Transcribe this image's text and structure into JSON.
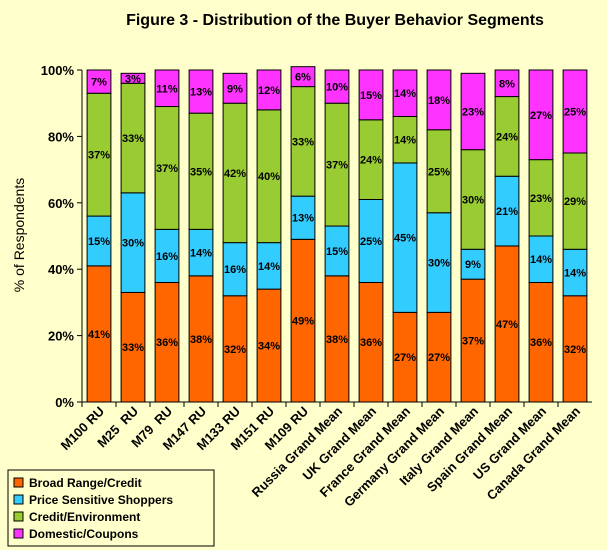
{
  "chart_data": {
    "type": "bar",
    "stacked": true,
    "title": "Figure 3 - Distribution of the Buyer Behavior Segments",
    "ylabel": "% of Respondents",
    "xlabel": "",
    "ylim": [
      0,
      100
    ],
    "yticks": [
      "0%",
      "20%",
      "40%",
      "60%",
      "80%",
      "100%"
    ],
    "grid": false,
    "legend_position": "bottom-left",
    "categories": [
      "M100 RU",
      "M25  RU",
      "M79  RU",
      "M147 RU",
      "M133 RU",
      "M151 RU",
      "M109 RU",
      "Russia Grand Mean",
      "UK Grand Mean",
      "France Grand Mean",
      "Germany Grand Mean",
      "Italy Grand Mean",
      "Spain Grand Mean",
      "US Grand Mean",
      "Canada Grand Mean"
    ],
    "series": [
      {
        "name": "Broad Range/Credit",
        "color": "#ff6600",
        "values": [
          41,
          33,
          36,
          38,
          32,
          34,
          49,
          38,
          36,
          27,
          27,
          37,
          47,
          36,
          32
        ]
      },
      {
        "name": "Price Sensitive Shoppers",
        "color": "#33ccff",
        "values": [
          15,
          30,
          16,
          14,
          16,
          14,
          13,
          15,
          25,
          45,
          30,
          9,
          21,
          14,
          14
        ]
      },
      {
        "name": "Credit/Environment",
        "color": "#99cc33",
        "values": [
          37,
          33,
          37,
          35,
          42,
          40,
          33,
          37,
          24,
          14,
          25,
          30,
          24,
          23,
          29
        ]
      },
      {
        "name": "Domestic/Coupons",
        "color": "#ff33ff",
        "values": [
          7,
          3,
          11,
          13,
          9,
          12,
          6,
          10,
          15,
          14,
          18,
          23,
          8,
          27,
          25
        ]
      }
    ]
  }
}
